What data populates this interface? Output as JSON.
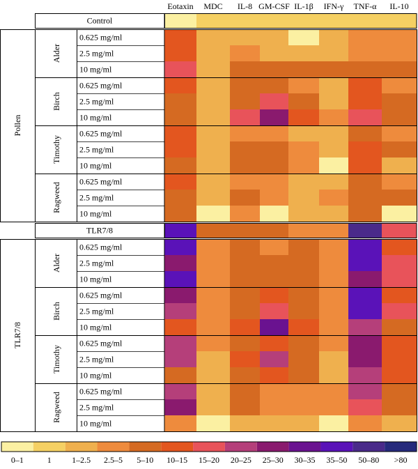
{
  "chart_data": {
    "type": "heatmap",
    "columns": [
      "Eotaxin",
      "MDC",
      "IL-8",
      "GM-CSF",
      "IL-1β",
      "IFN-γ",
      "TNF-α",
      "IL-10"
    ],
    "sections": [
      {
        "label": "Control",
        "cells": [
          [
            "0–1",
            "1",
            "1",
            "1",
            "1",
            "1",
            "1",
            "1"
          ]
        ]
      },
      {
        "label": "Pollen",
        "groups": [
          {
            "label": "Alder",
            "rows": [
              "0.625 mg/ml",
              "2.5 mg/ml",
              "10 mg/ml"
            ],
            "cells": [
              [
                "10–15",
                "1–2.5",
                "1–2.5",
                "1–2.5",
                "0–1",
                "1–2.5",
                "2.5–5",
                "2.5–5"
              ],
              [
                "10–15",
                "1–2.5",
                "2.5–5",
                "1–2.5",
                "1–2.5",
                "1–2.5",
                "2.5–5",
                "2.5–5"
              ],
              [
                "15–20",
                "1–2.5",
                "5–10",
                "5–10",
                "5–10",
                "5–10",
                "5–10",
                "5–10"
              ]
            ]
          },
          {
            "label": "Birch",
            "rows": [
              "0.625 mg/ml",
              "2.5 mg/ml",
              "10 mg/ml"
            ],
            "cells": [
              [
                "10–15",
                "1–2.5",
                "5–10",
                "5–10",
                "2.5–5",
                "1–2.5",
                "10–15",
                "2.5–5"
              ],
              [
                "5–10",
                "1–2.5",
                "5–10",
                "15–20",
                "5–10",
                "1–2.5",
                "10–15",
                "5–10"
              ],
              [
                "5–10",
                "1–2.5",
                "15–20",
                "25–30",
                "10–15",
                "2.5–5",
                "15–20",
                "5–10"
              ]
            ]
          },
          {
            "label": "Timothy",
            "rows": [
              "0.625 mg/ml",
              "2.5 mg/ml",
              "10 mg/ml"
            ],
            "cells": [
              [
                "10–15",
                "1–2.5",
                "2.5–5",
                "2.5–5",
                "1–2.5",
                "1–2.5",
                "5–10",
                "2.5–5"
              ],
              [
                "10–15",
                "1–2.5",
                "5–10",
                "5–10",
                "2.5–5",
                "1–2.5",
                "10–15",
                "5–10"
              ],
              [
                "5–10",
                "1–2.5",
                "5–10",
                "5–10",
                "2.5–5",
                "0–1",
                "10–15",
                "1–2.5"
              ]
            ]
          },
          {
            "label": "Ragweed",
            "rows": [
              "0.625 mg/ml",
              "2.5 mg/ml",
              "10 mg/ml"
            ],
            "cells": [
              [
                "10–15",
                "1–2.5",
                "2.5–5",
                "2.5–5",
                "1–2.5",
                "1–2.5",
                "5–10",
                "2.5–5"
              ],
              [
                "5–10",
                "1–2.5",
                "5–10",
                "2.5–5",
                "1–2.5",
                "2.5–5",
                "5–10",
                "5–10"
              ],
              [
                "5–10",
                "0–1",
                "2.5–5",
                "0–1",
                "1–2.5",
                "1–2.5",
                "5–10",
                "0–1"
              ]
            ]
          }
        ]
      },
      {
        "label": "TLR7/8",
        "cells": [
          [
            "35–50",
            "5–10",
            "5–10",
            "5–10",
            "2.5–5",
            "2.5–5",
            "50–80",
            "15–20"
          ]
        ]
      },
      {
        "label": "TLR7/8",
        "groups": [
          {
            "label": "Alder",
            "rows": [
              "0.625 mg/ml",
              "2.5 mg/ml",
              "10 mg/ml"
            ],
            "cells": [
              [
                "35–50",
                "2.5–5",
                "5–10",
                "2.5–5",
                "5–10",
                "2.5–5",
                "35–50",
                "10–15"
              ],
              [
                "25–30",
                "2.5–5",
                "5–10",
                "5–10",
                "5–10",
                "2.5–5",
                "35–50",
                "15–20"
              ],
              [
                "35–50",
                "2.5–5",
                "5–10",
                "5–10",
                "5–10",
                "2.5–5",
                "25–30",
                "15–20"
              ]
            ]
          },
          {
            "label": "Birch",
            "rows": [
              "0.625 mg/ml",
              "2.5 mg/ml",
              "10 mg/ml"
            ],
            "cells": [
              [
                "25–30",
                "2.5–5",
                "5–10",
                "10–15",
                "5–10",
                "2.5–5",
                "35–50",
                "10–15"
              ],
              [
                "20–25",
                "2.5–5",
                "5–10",
                "15–20",
                "5–10",
                "2.5–5",
                "35–50",
                "15–20"
              ],
              [
                "10–15",
                "2.5–5",
                "10–15",
                "30–35",
                "10–15",
                "2.5–5",
                "20–25",
                "5–10"
              ]
            ]
          },
          {
            "label": "Timothy",
            "rows": [
              "0.625 mg/ml",
              "2.5 mg/ml",
              "10 mg/ml"
            ],
            "cells": [
              [
                "20–25",
                "2.5–5",
                "5–10",
                "10–15",
                "5–10",
                "2.5–5",
                "25–30",
                "10–15"
              ],
              [
                "20–25",
                "1–2.5",
                "10–15",
                "20–25",
                "5–10",
                "1–2.5",
                "25–30",
                "10–15"
              ],
              [
                "5–10",
                "1–2.5",
                "5–10",
                "10–15",
                "5–10",
                "1–2.5",
                "20–25",
                "10–15"
              ]
            ]
          },
          {
            "label": "Ragweed",
            "rows": [
              "0.625 mg/ml",
              "2.5 mg/ml",
              "10 mg/ml"
            ],
            "cells": [
              [
                "20–25",
                "1–2.5",
                "5–10",
                "2.5–5",
                "2.5–5",
                "2.5–5",
                "20–25",
                "5–10"
              ],
              [
                "25–30",
                "1–2.5",
                "5–10",
                "2.5–5",
                "2.5–5",
                "2.5–5",
                "15–20",
                "5–10"
              ],
              [
                "2.5–5",
                "0–1",
                "1–2.5",
                "1–2.5",
                "1–2.5",
                "0–1",
                "2.5–5",
                "1–2.5"
              ]
            ]
          }
        ]
      }
    ],
    "legend": {
      "labels": [
        "0–1",
        "1",
        "1–2.5",
        "2.5–5",
        "5–10",
        "10–15",
        "15–20",
        "20–25",
        "25–30",
        "30–35",
        "35–50",
        "50–80",
        ">80"
      ],
      "colors": [
        "#fbf0a2",
        "#f5d063",
        "#efb04e",
        "#ee8b3d",
        "#d56a22",
        "#e3561f",
        "#e8535a",
        "#b53f7a",
        "#8a1a6e",
        "#6a1290",
        "#5a12b8",
        "#4a2a8a",
        "#262a7c"
      ]
    }
  }
}
